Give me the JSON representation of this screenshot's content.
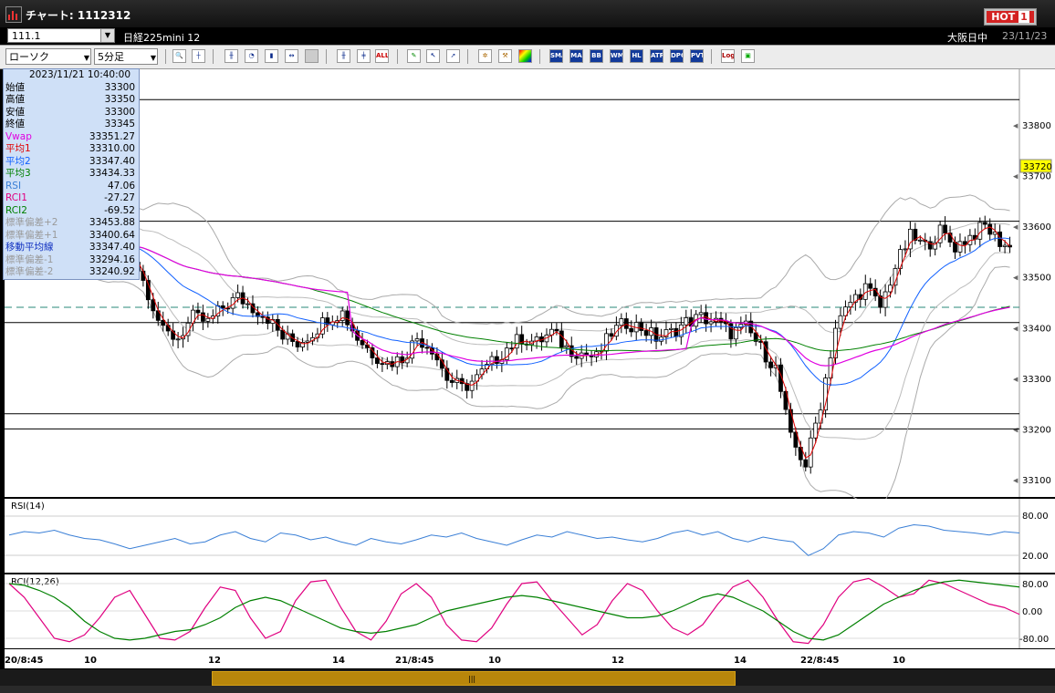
{
  "window": {
    "title": "チャート: 1112312",
    "hot_label": "HOT"
  },
  "header": {
    "symbol_code": "111.1",
    "instrument": "日経225mini 12",
    "market": "大阪日中",
    "date": "23/11/23"
  },
  "toolbar": {
    "chart_type": "ローソク",
    "interval": "5分足",
    "icons": [
      "zoom-icon",
      "crosshair-icon",
      "candle-icon",
      "clock-icon",
      "volume-icon",
      "spread-icon",
      "blank-icon",
      "candle-add-icon",
      "ohlc-icon",
      "all-icon",
      "pencil-icon",
      "cursor-icon",
      "arrow-icon",
      "gear-icon",
      "wrench-icon",
      "color-icon"
    ],
    "indicator_buttons": [
      "SMA",
      "MA",
      "BB",
      "WMA",
      "HL",
      "ATR",
      "DPO",
      "PVT"
    ],
    "log_label": "Log"
  },
  "info": {
    "datetime": "2023/11/21  10:40:00",
    "rows": [
      {
        "label": "始値",
        "value": "33300",
        "color": "#000000"
      },
      {
        "label": "高値",
        "value": "33350",
        "color": "#000000"
      },
      {
        "label": "安値",
        "value": "33300",
        "color": "#000000"
      },
      {
        "label": "終値",
        "value": "33345",
        "color": "#000000"
      },
      {
        "label": "Vwap",
        "value": "33351.27",
        "color": "#e000e0"
      },
      {
        "label": "平均1",
        "value": "33310.00",
        "color": "#e00000"
      },
      {
        "label": "平均2",
        "value": "33347.40",
        "color": "#1060ff"
      },
      {
        "label": "平均3",
        "value": "33434.33",
        "color": "#008000"
      },
      {
        "label": "RSI",
        "value": "47.06",
        "color": "#3a7fd6"
      },
      {
        "label": "RCI1",
        "value": "-27.27",
        "color": "#e00080"
      },
      {
        "label": "RCI2",
        "value": "-69.52",
        "color": "#008000"
      },
      {
        "label": "標準偏差+2",
        "value": "33453.88",
        "color": "#9a9a9a"
      },
      {
        "label": "標準偏差+1",
        "value": "33400.64",
        "color": "#9a9a9a"
      },
      {
        "label": "移動平均線",
        "value": "33347.40",
        "color": "#1030c0"
      },
      {
        "label": "標準偏差-1",
        "value": "33294.16",
        "color": "#9a9a9a"
      },
      {
        "label": "標準偏差-2",
        "value": "33240.92",
        "color": "#9a9a9a"
      }
    ]
  },
  "chart_data": [
    {
      "type": "candlestick",
      "title": "",
      "y_ticks": [
        "33800",
        "33700",
        "33600",
        "33500",
        "33400",
        "33300",
        "33200",
        "33100"
      ],
      "price_marker": "33720",
      "x_ticks": [
        "20/8:45",
        "10",
        "12",
        "14",
        "21/8:45",
        "10",
        "12",
        "14",
        "22/8:45",
        "10"
      ],
      "series": [
        {
          "name": "平均1",
          "color": "#e00000"
        },
        {
          "name": "平均2",
          "color": "#1060ff"
        },
        {
          "name": "平均3",
          "color": "#008000"
        },
        {
          "name": "Vwap",
          "color": "#e000e0"
        },
        {
          "name": "移動平均線",
          "color": "#1030c0"
        }
      ],
      "close_path": [
        33560,
        33570,
        33600,
        33590,
        33570,
        33520,
        33530,
        33560,
        33540,
        33470,
        33390,
        33380,
        33420,
        33410,
        33440,
        33460,
        33440,
        33420,
        33380,
        33370,
        33390,
        33420,
        33430,
        33380,
        33350,
        33330,
        33340,
        33380,
        33360,
        33300,
        33280,
        33300,
        33330,
        33360,
        33380,
        33370,
        33390,
        33360,
        33350,
        33340,
        33390,
        33410,
        33400,
        33380,
        33390,
        33410,
        33420,
        33410,
        33390,
        33400,
        33360,
        33320,
        33180,
        33130,
        33250,
        33400,
        33450,
        33480,
        33440,
        33520,
        33580,
        33560,
        33590,
        33560,
        33580,
        33600,
        33570,
        33550
      ],
      "hlines": [
        33850,
        33610,
        33410,
        33230,
        33200
      ],
      "dashed_hline": 33440
    },
    {
      "type": "line",
      "title": "RSI(14)",
      "y_ticks": [
        "80.00",
        "20.00"
      ],
      "values": [
        55,
        60,
        58,
        62,
        55,
        50,
        48,
        42,
        35,
        40,
        45,
        50,
        42,
        45,
        55,
        60,
        50,
        45,
        58,
        55,
        48,
        52,
        45,
        40,
        50,
        45,
        42,
        48,
        55,
        52,
        58,
        50,
        45,
        40,
        48,
        55,
        52,
        60,
        55,
        50,
        52,
        48,
        45,
        50,
        58,
        62,
        55,
        60,
        50,
        45,
        52,
        48,
        45,
        25,
        35,
        55,
        60,
        58,
        52,
        65,
        70,
        68,
        62,
        60,
        58,
        55,
        60,
        58
      ]
    },
    {
      "type": "line",
      "title": "RCI(12,26)",
      "y_ticks": [
        "80.00",
        "0.00",
        "-80.00"
      ],
      "series": [
        {
          "name": "RCI1",
          "color": "#e00080",
          "values": [
            80,
            40,
            -20,
            -80,
            -90,
            -70,
            -20,
            40,
            60,
            -10,
            -80,
            -85,
            -60,
            10,
            70,
            60,
            -20,
            -80,
            -60,
            30,
            85,
            90,
            10,
            -60,
            -85,
            -30,
            50,
            80,
            40,
            -40,
            -85,
            -90,
            -50,
            20,
            80,
            85,
            30,
            -20,
            -70,
            -40,
            30,
            80,
            60,
            0,
            -50,
            -70,
            -40,
            20,
            70,
            90,
            40,
            -30,
            -90,
            -95,
            -40,
            40,
            85,
            95,
            70,
            40,
            50,
            90,
            80,
            60,
            40,
            20,
            10,
            -10
          ]
        },
        {
          "name": "RCI2",
          "color": "#008000",
          "values": [
            80,
            75,
            60,
            40,
            10,
            -30,
            -60,
            -80,
            -85,
            -80,
            -70,
            -60,
            -55,
            -40,
            -20,
            10,
            30,
            40,
            30,
            10,
            -10,
            -30,
            -50,
            -60,
            -65,
            -60,
            -50,
            -40,
            -20,
            0,
            10,
            20,
            30,
            40,
            45,
            40,
            30,
            20,
            10,
            0,
            -10,
            -20,
            -20,
            -15,
            0,
            20,
            40,
            50,
            40,
            20,
            0,
            -30,
            -60,
            -80,
            -85,
            -70,
            -40,
            -10,
            20,
            40,
            60,
            75,
            85,
            90,
            85,
            80,
            75,
            70
          ]
        }
      ]
    }
  ]
}
